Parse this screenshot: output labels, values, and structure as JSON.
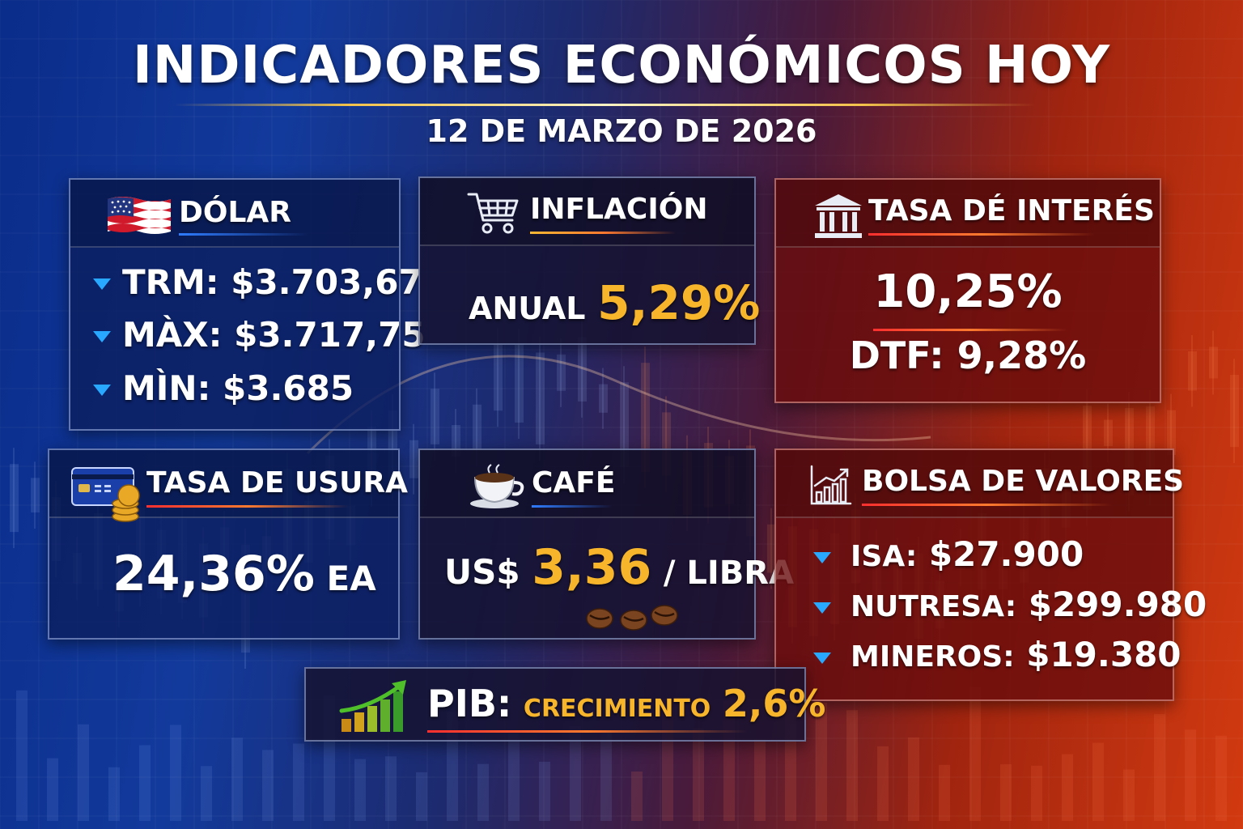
{
  "header": {
    "title": "INDICADORES ECONÓMICOS HOY",
    "date": "12 DE MARZO DE 2026"
  },
  "dolar": {
    "label": "DÓLAR",
    "icon": "us-flag-icon",
    "rows": [
      {
        "label": "TRM:",
        "value": "$3.703,67"
      },
      {
        "label": "MÀX:",
        "value": "$3.717,75"
      },
      {
        "label": "MÌN:",
        "value": "$3.685"
      }
    ]
  },
  "inflacion": {
    "label": "INFLACIÓN",
    "icon": "shopping-cart-icon",
    "prefix": "ANUAL",
    "value": "5,29%"
  },
  "tasa_interes": {
    "label": "TASA DÉ INTERÉS",
    "icon": "bank-building-icon",
    "value": "10,25%",
    "dtf_label": "DTF:",
    "dtf_value": "9,28%"
  },
  "usura": {
    "label": "TASA DE USURA",
    "icon": "credit-card-coins-icon",
    "value": "24,36%",
    "suffix": "EA"
  },
  "cafe": {
    "label": "CAFÉ",
    "icon": "coffee-cup-icon",
    "prefix": "US$",
    "value": "3,36",
    "suffix": "/ LIBRA"
  },
  "bolsa": {
    "label": "BOLSA DE VALORES",
    "icon": "bar-chart-up-icon",
    "rows": [
      {
        "label": "ISA:",
        "value": "$27.900"
      },
      {
        "label": "NUTRESA:",
        "value": "$299.980"
      },
      {
        "label": "MINEROS:",
        "value": "$19.380"
      }
    ]
  },
  "pib": {
    "label": "PIB:",
    "icon": "growth-bars-icon",
    "sub": "CRECIMIENTO",
    "value": "2,6%"
  },
  "colors": {
    "accent_gold": "#f7b52c",
    "down_arrow": "#29a8ff",
    "blue_panel": "#0c1e5f",
    "red_panel": "#690c0c"
  }
}
